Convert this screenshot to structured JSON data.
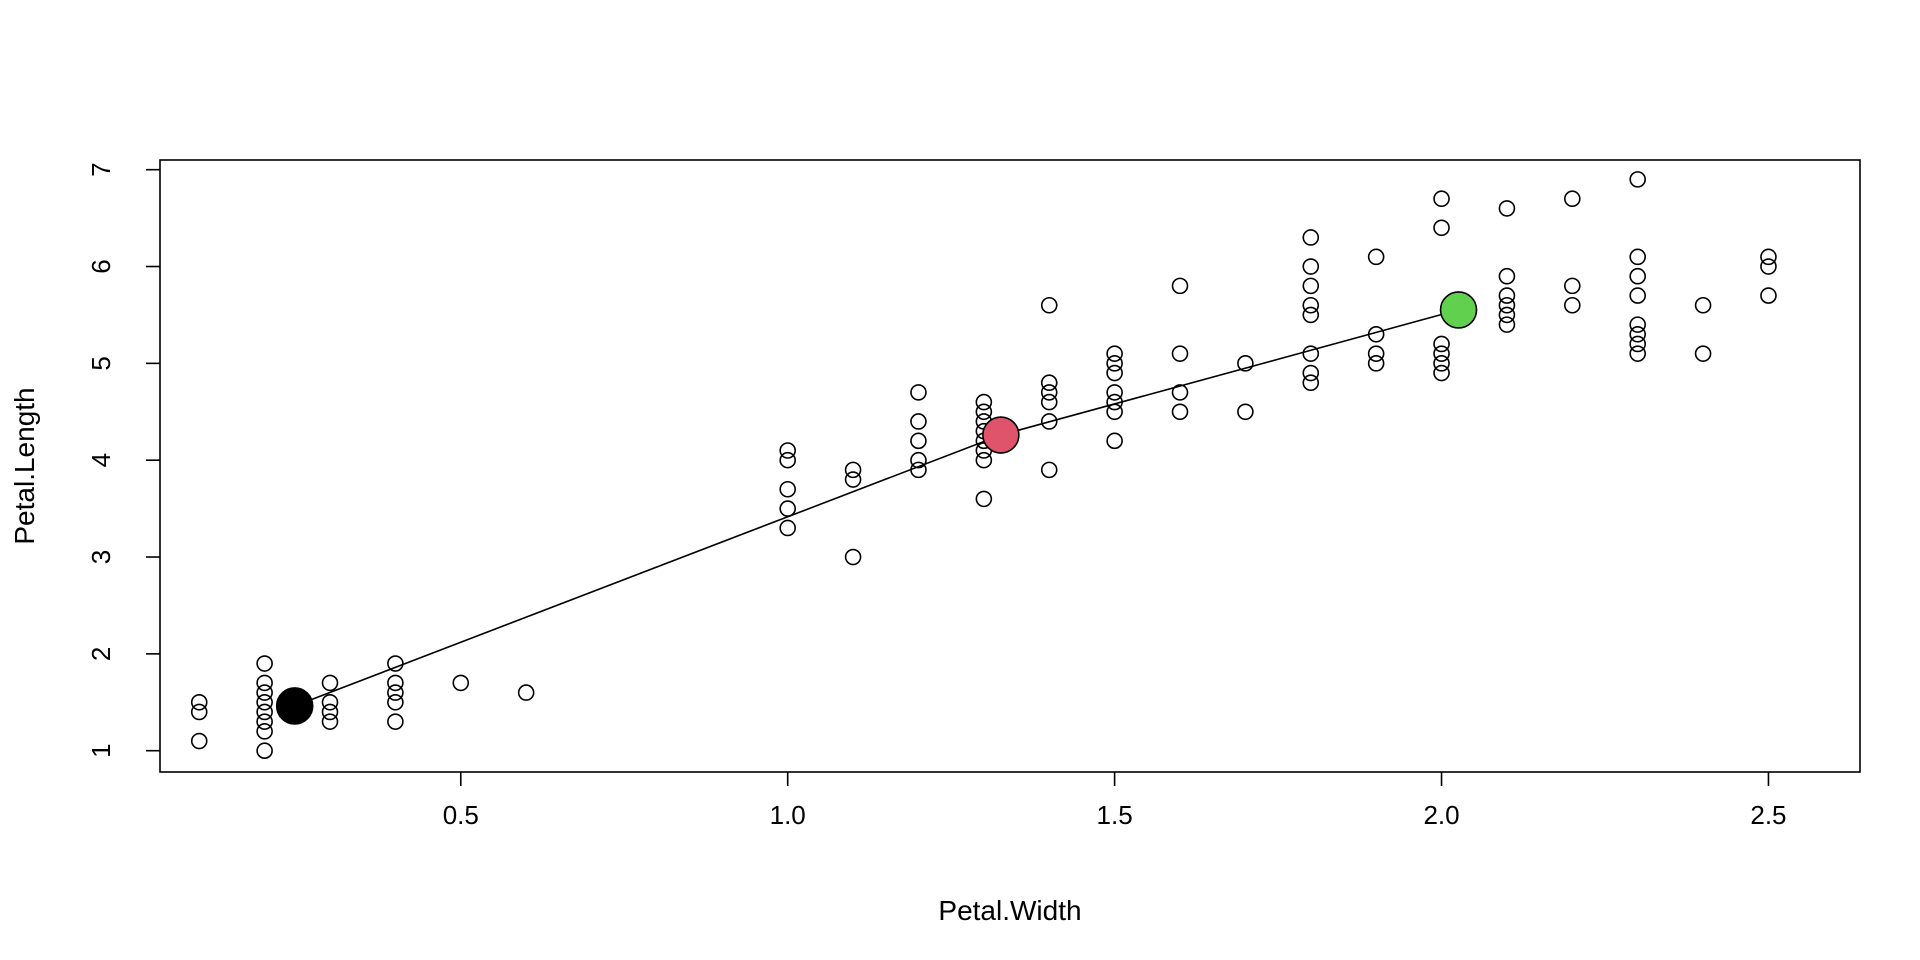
{
  "chart_data": {
    "type": "scatter",
    "title": "",
    "xlabel": "Petal.Width",
    "ylabel": "Petal.Length",
    "xlim": [
      0.04,
      2.64
    ],
    "ylim": [
      0.78,
      7.1
    ],
    "x_ticks": [
      "0.5",
      "1.0",
      "1.5",
      "2.0",
      "2.5"
    ],
    "y_ticks": [
      "1",
      "2",
      "3",
      "4",
      "5",
      "6",
      "7"
    ],
    "grid": false,
    "legend": "none",
    "points": [
      [
        0.1,
        1.5
      ],
      [
        0.1,
        1.4
      ],
      [
        0.1,
        1.1
      ],
      [
        0.2,
        1.9
      ],
      [
        0.2,
        1.7
      ],
      [
        0.2,
        1.6
      ],
      [
        0.2,
        1.5
      ],
      [
        0.2,
        1.4
      ],
      [
        0.2,
        1.3
      ],
      [
        0.2,
        1.2
      ],
      [
        0.2,
        1.0
      ],
      [
        0.3,
        1.7
      ],
      [
        0.3,
        1.5
      ],
      [
        0.3,
        1.4
      ],
      [
        0.3,
        1.3
      ],
      [
        0.4,
        1.9
      ],
      [
        0.4,
        1.7
      ],
      [
        0.4,
        1.6
      ],
      [
        0.4,
        1.5
      ],
      [
        0.4,
        1.3
      ],
      [
        0.5,
        1.7
      ],
      [
        0.6,
        1.6
      ],
      [
        1.0,
        4.1
      ],
      [
        1.0,
        4.0
      ],
      [
        1.0,
        3.7
      ],
      [
        1.0,
        3.5
      ],
      [
        1.0,
        3.3
      ],
      [
        1.1,
        3.9
      ],
      [
        1.1,
        3.8
      ],
      [
        1.1,
        3.0
      ],
      [
        1.2,
        4.7
      ],
      [
        1.2,
        4.4
      ],
      [
        1.2,
        4.2
      ],
      [
        1.2,
        4.0
      ],
      [
        1.2,
        3.9
      ],
      [
        1.3,
        4.6
      ],
      [
        1.3,
        4.5
      ],
      [
        1.3,
        4.4
      ],
      [
        1.3,
        4.3
      ],
      [
        1.3,
        4.2
      ],
      [
        1.3,
        4.1
      ],
      [
        1.3,
        4.0
      ],
      [
        1.3,
        3.6
      ],
      [
        1.4,
        5.6
      ],
      [
        1.4,
        4.8
      ],
      [
        1.4,
        4.7
      ],
      [
        1.4,
        4.6
      ],
      [
        1.4,
        4.4
      ],
      [
        1.4,
        3.9
      ],
      [
        1.5,
        5.1
      ],
      [
        1.5,
        5.0
      ],
      [
        1.5,
        4.9
      ],
      [
        1.5,
        4.7
      ],
      [
        1.5,
        4.6
      ],
      [
        1.5,
        4.5
      ],
      [
        1.5,
        4.2
      ],
      [
        1.6,
        5.8
      ],
      [
        1.6,
        5.1
      ],
      [
        1.6,
        4.7
      ],
      [
        1.6,
        4.5
      ],
      [
        1.7,
        5.0
      ],
      [
        1.7,
        4.5
      ],
      [
        1.8,
        6.3
      ],
      [
        1.8,
        6.0
      ],
      [
        1.8,
        5.8
      ],
      [
        1.8,
        5.6
      ],
      [
        1.8,
        5.5
      ],
      [
        1.8,
        5.1
      ],
      [
        1.8,
        4.9
      ],
      [
        1.8,
        4.8
      ],
      [
        1.9,
        6.1
      ],
      [
        1.9,
        5.3
      ],
      [
        1.9,
        5.1
      ],
      [
        1.9,
        5.0
      ],
      [
        2.0,
        6.7
      ],
      [
        2.0,
        6.4
      ],
      [
        2.0,
        5.2
      ],
      [
        2.0,
        5.1
      ],
      [
        2.0,
        5.0
      ],
      [
        2.0,
        4.9
      ],
      [
        2.1,
        6.6
      ],
      [
        2.1,
        5.9
      ],
      [
        2.1,
        5.7
      ],
      [
        2.1,
        5.6
      ],
      [
        2.1,
        5.5
      ],
      [
        2.1,
        5.4
      ],
      [
        2.2,
        6.7
      ],
      [
        2.2,
        5.8
      ],
      [
        2.2,
        5.6
      ],
      [
        2.3,
        6.9
      ],
      [
        2.3,
        6.1
      ],
      [
        2.3,
        5.9
      ],
      [
        2.3,
        5.7
      ],
      [
        2.3,
        5.4
      ],
      [
        2.3,
        5.3
      ],
      [
        2.3,
        5.2
      ],
      [
        2.3,
        5.1
      ],
      [
        2.4,
        5.6
      ],
      [
        2.4,
        5.1
      ],
      [
        2.5,
        6.1
      ],
      [
        2.5,
        6.0
      ],
      [
        2.5,
        5.7
      ]
    ],
    "centroids": [
      {
        "x": 0.246,
        "y": 1.462,
        "color": "#000000"
      },
      {
        "x": 1.326,
        "y": 4.26,
        "color": "#DF536B"
      },
      {
        "x": 2.026,
        "y": 5.552,
        "color": "#61D04F"
      }
    ],
    "centroid_line": true
  }
}
